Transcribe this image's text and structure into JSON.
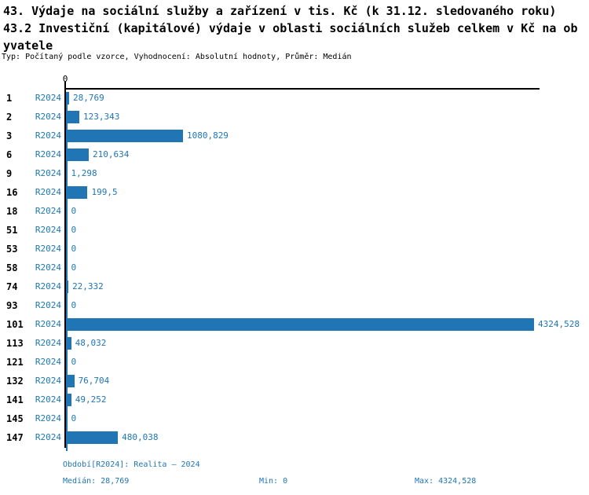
{
  "page": {
    "title_line1": "43. Výdaje na sociální služby a zařízení v tis. Kč (k 31.12. sledovaného roku)",
    "title_line2": "43.2 Investiční (kapitálové) výdaje v oblasti sociálních služeb celkem v Kč na ob",
    "title_line3": "yvatele",
    "meta": "Typ: Počítaný podle vzorce, Vyhodnocení: Absolutní hodnoty, Průměr: Medián"
  },
  "axis": {
    "zero_label": "0"
  },
  "chart_data": {
    "type": "bar",
    "orientation": "horizontal",
    "title": "43. Výdaje na sociální služby a zařízení v tis. Kč (k 31.12. sledovaného roku)",
    "subtitle": "43.2 Investiční (kapitálové) výdaje v oblasti sociálních služeb celkem v Kč na obyvatele",
    "series_name": "R2024",
    "categories": [
      "1",
      "2",
      "3",
      "6",
      "9",
      "16",
      "18",
      "51",
      "53",
      "58",
      "74",
      "93",
      "101",
      "113",
      "121",
      "132",
      "141",
      "145",
      "147"
    ],
    "values": [
      28.769,
      123.343,
      1080.829,
      210.634,
      1.298,
      199.5,
      0,
      0,
      0,
      0,
      22.332,
      0,
      4324.528,
      48.032,
      0,
      76.704,
      49.252,
      0,
      480.038
    ],
    "value_labels": [
      "28,769",
      "123,343",
      "1080,829",
      "210,634",
      "1,298",
      "199,5",
      "0",
      "0",
      "0",
      "0",
      "22,332",
      "0",
      "4324,528",
      "48,032",
      "0",
      "76,704",
      "49,252",
      "0",
      "480,038"
    ],
    "xlim": [
      0,
      4324.528
    ],
    "grid": false,
    "legend_position": "none"
  },
  "footer": {
    "period": "Období[R2024]: Realita – 2024",
    "median": "Medián: 28,769",
    "min": "Min: 0",
    "max": "Max: 4324,528"
  },
  "colors": {
    "bar_blue": "#2076b4",
    "axis_black": "#000000"
  }
}
